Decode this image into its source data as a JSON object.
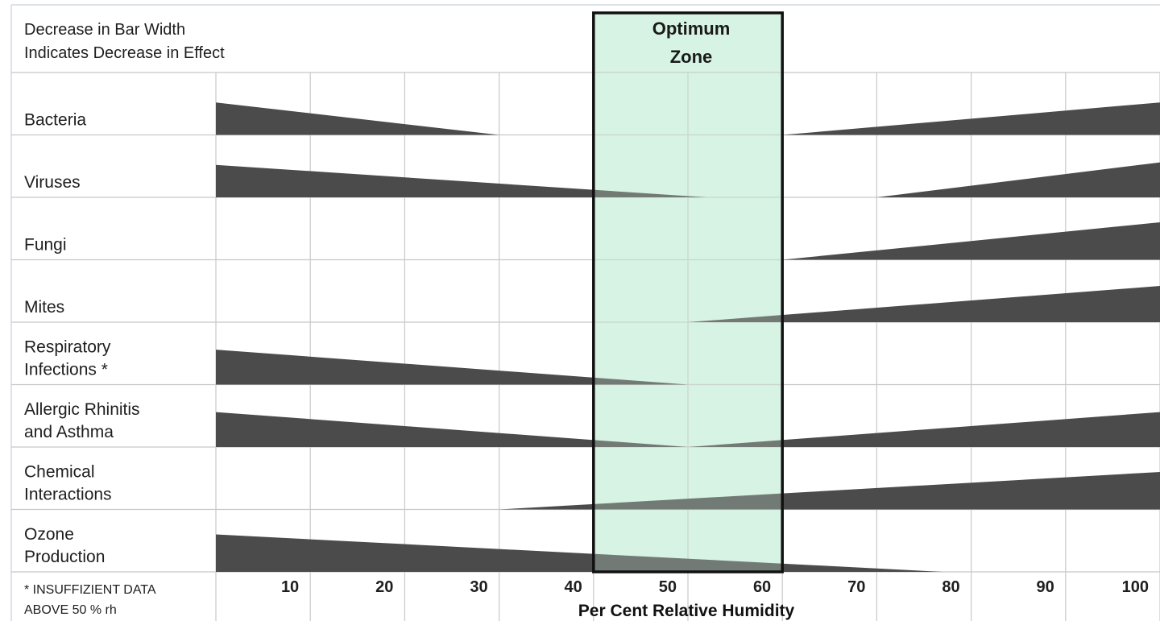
{
  "chart_data": {
    "type": "area",
    "title_lines": [
      "Decrease in Bar Width",
      "Indicates Decrease in Effect"
    ],
    "xlabel": "Per Cent Relative Humidity",
    "xlim": [
      0,
      100
    ],
    "ticks": [
      "10",
      "20",
      "30",
      "40",
      "50",
      "60",
      "70",
      "80",
      "90",
      "100"
    ],
    "tick_values": [
      10,
      20,
      30,
      40,
      50,
      60,
      70,
      80,
      90,
      100
    ],
    "optimum_zone": {
      "label_lines": [
        "Optimum",
        "Zone"
      ],
      "range": [
        40,
        60
      ]
    },
    "footnote_lines": [
      "* INSUFFIZIENT DATA",
      "ABOVE  50 % rh"
    ],
    "rows": [
      {
        "label_lines": [
          "Bacteria"
        ],
        "segments": [
          {
            "from": 0,
            "to": 30,
            "start": 0.52,
            "end": 0
          },
          {
            "from": 60,
            "to": 100,
            "start": 0,
            "end": 0.52
          }
        ]
      },
      {
        "label_lines": [
          "Viruses"
        ],
        "segments": [
          {
            "from": 0,
            "to": 52,
            "start": 0.52,
            "end": 0
          },
          {
            "from": 70,
            "to": 100,
            "start": 0,
            "end": 0.56
          }
        ]
      },
      {
        "label_lines": [
          "Fungi"
        ],
        "segments": [
          {
            "from": 60,
            "to": 100,
            "start": 0,
            "end": 0.6
          }
        ]
      },
      {
        "label_lines": [
          "Mites"
        ],
        "segments": [
          {
            "from": 50,
            "to": 100,
            "start": 0,
            "end": 0.58
          }
        ]
      },
      {
        "label_lines": [
          "Respiratory",
          "Infections *"
        ],
        "segments": [
          {
            "from": 0,
            "to": 50,
            "start": 0.56,
            "end": 0
          }
        ]
      },
      {
        "label_lines": [
          "Allergic Rhinitis",
          "and Asthma"
        ],
        "segments": [
          {
            "from": 0,
            "to": 50,
            "start": 0.56,
            "end": 0
          },
          {
            "from": 50,
            "to": 100,
            "start": 0,
            "end": 0.56
          }
        ]
      },
      {
        "label_lines": [
          "Chemical",
          "Interactions"
        ],
        "segments": [
          {
            "from": 30,
            "to": 100,
            "start": 0,
            "end": 0.6
          }
        ]
      },
      {
        "label_lines": [
          "Ozone",
          "Production"
        ],
        "segments": [
          {
            "from": 0,
            "to": 77,
            "start": 0.6,
            "end": 0
          }
        ]
      }
    ],
    "colors": {
      "bar": "#4b4b4b",
      "zone_fill": "#d6f3e3",
      "zone_border": "#111111",
      "grid": "#c8c8c8"
    }
  }
}
